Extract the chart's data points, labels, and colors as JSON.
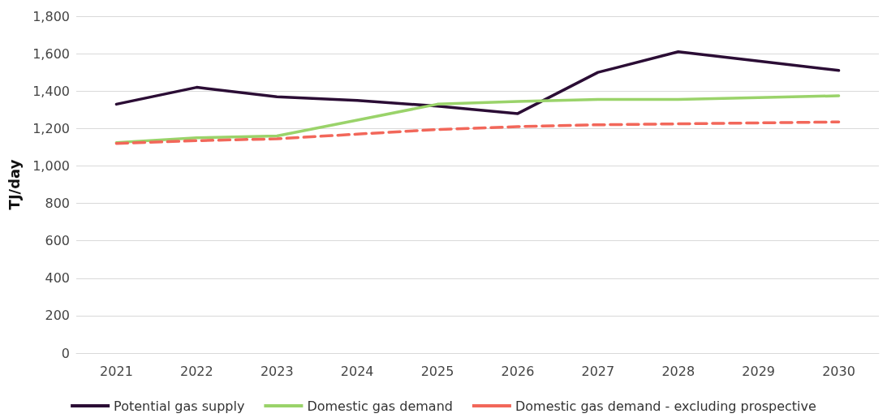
{
  "chart_data": {
    "type": "line",
    "ylabel": "TJ/day",
    "categories": [
      "2021",
      "2022",
      "2023",
      "2024",
      "2025",
      "2026",
      "2027",
      "2028",
      "2029",
      "2030"
    ],
    "series": [
      {
        "name": "Potential gas supply",
        "color": "#2b0d35",
        "line_style": "solid",
        "values": [
          1330,
          1420,
          1370,
          1350,
          1320,
          1280,
          1500,
          1610,
          1560,
          1510
        ]
      },
      {
        "name": "Domestic gas demand",
        "color": "#9ad36a",
        "line_style": "solid",
        "values": [
          1125,
          1150,
          1160,
          1245,
          1330,
          1345,
          1355,
          1355,
          1365,
          1375
        ]
      },
      {
        "name": "Domestic gas demand - excluding prospective",
        "color": "#f2675a",
        "line_style": "dashed",
        "values": [
          1120,
          1135,
          1145,
          1170,
          1195,
          1210,
          1220,
          1225,
          1230,
          1235
        ]
      }
    ],
    "ylim": [
      0,
      1800
    ],
    "yticks": [
      0,
      200,
      400,
      600,
      800,
      {
        "value": 1000,
        "label": "1,000"
      },
      {
        "value": 1200,
        "label": "1,200"
      },
      {
        "value": 1400,
        "label": "1,400"
      },
      {
        "value": 1600,
        "label": "1,600"
      },
      {
        "value": 1800,
        "label": "1,800"
      }
    ],
    "grid": "y",
    "legend": "bottom",
    "marker": "none"
  }
}
